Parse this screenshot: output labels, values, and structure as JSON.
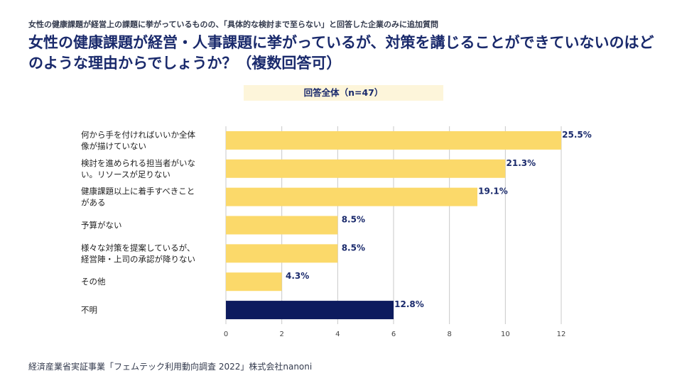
{
  "header": {
    "subtitle": "女性の健康課題が経営上の課題に挙がっているものの、「具体的な検討まで至らない」と回答した企業のみに追加質問",
    "title": "女性の健康課題が経営・人事課題に挙がっているが、対策を講じることができていないのはどのような理由からでしょうか？（複数回答可）",
    "badge": "回答全体（n=47）"
  },
  "footer": {
    "source": "経済産業省実証事業「フェムテック利用動向調査 2022」株式会社nanoni"
  },
  "chart_data": {
    "type": "bar",
    "orientation": "horizontal",
    "categories": [
      [
        "何から手を付ければいいか全体",
        "像が描けていない"
      ],
      [
        "検討を進められる担当者がいな",
        "い。リソースが足りない"
      ],
      [
        "健康課題以上に着手すべきこと",
        "がある"
      ],
      [
        "予算がない"
      ],
      [
        "様々な対策を提案しているが、",
        "経営陣・上司の承認が降りない"
      ],
      [
        "その他"
      ],
      [
        "不明"
      ]
    ],
    "values": [
      12,
      10,
      9,
      4,
      4,
      2,
      6
    ],
    "value_labels": [
      "25.5%",
      "21.3%",
      "19.1%",
      "8.5%",
      "8.5%",
      "4.3%",
      "12.8%"
    ],
    "bar_colors": [
      "#fbd96a",
      "#fbd96a",
      "#fbd96a",
      "#fbd96a",
      "#fbd96a",
      "#fbd96a",
      "#0d1b5e"
    ],
    "xlim": [
      0,
      12
    ],
    "xticks": [
      "0",
      "2",
      "4",
      "6",
      "8",
      "10",
      "12"
    ],
    "grid": true
  }
}
